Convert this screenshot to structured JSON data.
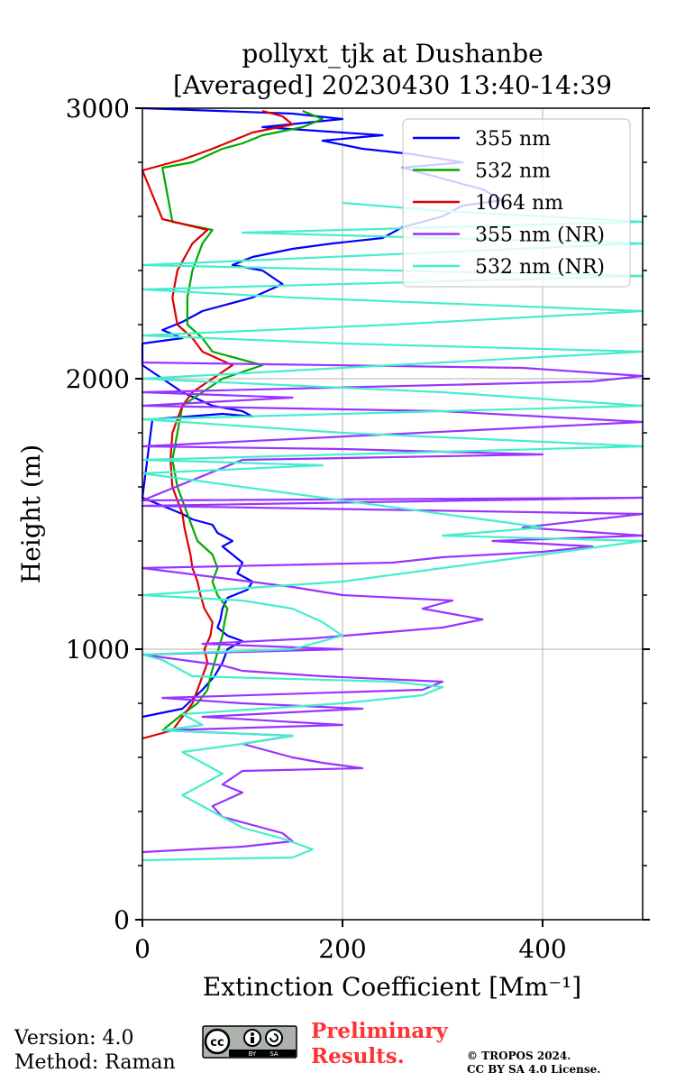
{
  "title": {
    "line1": "pollyxt_tjk at Dushanbe",
    "line2": "[Averaged] 20230430 13:40-14:39"
  },
  "footer": {
    "version": "Version: 4.0",
    "method": "Method: Raman",
    "preliminary_line1": "Preliminary",
    "preliminary_line2": "Results.",
    "copyright_line1": "© TROPOS 2024.",
    "copyright_line2": "CC BY SA 4.0 License.",
    "license_badge": [
      "cc",
      "BY",
      "SA"
    ],
    "license_icons": [
      "cc-icon",
      "by-icon",
      "sa-icon"
    ]
  },
  "chart_data": {
    "type": "line",
    "title": "pollyxt_tjk at Dushanbe [Averaged] 20230430 13:40-14:39",
    "xlabel": "Extinction Coefficient [Mm⁻¹]",
    "ylabel": "Height (m)",
    "xlim": [
      0,
      500
    ],
    "ylim": [
      0,
      3000
    ],
    "x_ticks": [
      0,
      200,
      400
    ],
    "x_tick_labels": [
      "0",
      "200",
      "400"
    ],
    "y_ticks": [
      0,
      1000,
      2000,
      3000
    ],
    "y_tick_labels": [
      "0",
      "1000",
      "2000",
      "3000"
    ],
    "grid": true,
    "legend_position": "top-right",
    "series": [
      {
        "name": "355 nm",
        "color": "#0000ff",
        "points": [
          [
            0,
            750
          ],
          [
            40,
            780
          ],
          [
            60,
            850
          ],
          [
            72,
            900
          ],
          [
            80,
            950
          ],
          [
            85,
            1000
          ],
          [
            100,
            1030
          ],
          [
            85,
            1050
          ],
          [
            75,
            1080
          ],
          [
            78,
            1110
          ],
          [
            80,
            1150
          ],
          [
            85,
            1190
          ],
          [
            105,
            1220
          ],
          [
            110,
            1250
          ],
          [
            95,
            1280
          ],
          [
            100,
            1320
          ],
          [
            90,
            1350
          ],
          [
            80,
            1380
          ],
          [
            90,
            1400
          ],
          [
            75,
            1430
          ],
          [
            70,
            1460
          ],
          [
            50,
            1480
          ],
          [
            40,
            1500
          ],
          [
            20,
            1530
          ],
          [
            0,
            1560
          ],
          [
            10,
            1850
          ],
          [
            80,
            1870
          ],
          [
            110,
            1860
          ],
          [
            100,
            1880
          ],
          [
            70,
            1900
          ],
          [
            40,
            1950
          ],
          [
            20,
            2000
          ],
          [
            0,
            2050
          ],
          [
            0,
            2130
          ],
          [
            40,
            2150
          ],
          [
            20,
            2180
          ],
          [
            40,
            2210
          ],
          [
            60,
            2250
          ],
          [
            110,
            2300
          ],
          [
            140,
            2350
          ],
          [
            120,
            2400
          ],
          [
            90,
            2420
          ],
          [
            110,
            2450
          ],
          [
            150,
            2480
          ],
          [
            190,
            2500
          ],
          [
            240,
            2520
          ],
          [
            260,
            2560
          ],
          [
            300,
            2600
          ],
          [
            320,
            2640
          ],
          [
            360,
            2660
          ],
          [
            340,
            2700
          ],
          [
            300,
            2740
          ],
          [
            260,
            2780
          ],
          [
            320,
            2800
          ],
          [
            270,
            2830
          ],
          [
            220,
            2850
          ],
          [
            180,
            2880
          ],
          [
            240,
            2900
          ],
          [
            120,
            2930
          ],
          [
            200,
            2960
          ],
          [
            150,
            2980
          ],
          [
            0,
            3000
          ]
        ]
      },
      {
        "name": "532 nm",
        "color": "#00aa00",
        "points": [
          [
            20,
            700
          ],
          [
            40,
            760
          ],
          [
            55,
            800
          ],
          [
            65,
            850
          ],
          [
            68,
            900
          ],
          [
            72,
            950
          ],
          [
            76,
            1000
          ],
          [
            80,
            1050
          ],
          [
            82,
            1100
          ],
          [
            85,
            1150
          ],
          [
            75,
            1200
          ],
          [
            70,
            1250
          ],
          [
            75,
            1300
          ],
          [
            70,
            1350
          ],
          [
            55,
            1400
          ],
          [
            50,
            1450
          ],
          [
            45,
            1500
          ],
          [
            40,
            1550
          ],
          [
            35,
            1600
          ],
          [
            30,
            1700
          ],
          [
            35,
            1800
          ],
          [
            40,
            1900
          ],
          [
            60,
            1950
          ],
          [
            80,
            2000
          ],
          [
            120,
            2050
          ],
          [
            70,
            2100
          ],
          [
            60,
            2150
          ],
          [
            45,
            2200
          ],
          [
            45,
            2300
          ],
          [
            50,
            2400
          ],
          [
            60,
            2500
          ],
          [
            70,
            2550
          ],
          [
            30,
            2580
          ],
          [
            20,
            2780
          ],
          [
            50,
            2800
          ],
          [
            80,
            2850
          ],
          [
            100,
            2870
          ],
          [
            120,
            2900
          ],
          [
            160,
            2930
          ],
          [
            180,
            2960
          ],
          [
            160,
            2990
          ]
        ]
      },
      {
        "name": "1064 nm",
        "color": "#dd0000",
        "points": [
          [
            0,
            670
          ],
          [
            30,
            700
          ],
          [
            40,
            750
          ],
          [
            50,
            800
          ],
          [
            55,
            850
          ],
          [
            60,
            900
          ],
          [
            65,
            950
          ],
          [
            62,
            1000
          ],
          [
            68,
            1050
          ],
          [
            70,
            1100
          ],
          [
            62,
            1150
          ],
          [
            58,
            1200
          ],
          [
            55,
            1250
          ],
          [
            50,
            1300
          ],
          [
            48,
            1350
          ],
          [
            45,
            1400
          ],
          [
            42,
            1450
          ],
          [
            40,
            1500
          ],
          [
            35,
            1550
          ],
          [
            30,
            1600
          ],
          [
            28,
            1700
          ],
          [
            30,
            1800
          ],
          [
            40,
            1900
          ],
          [
            50,
            1950
          ],
          [
            70,
            2000
          ],
          [
            90,
            2050
          ],
          [
            60,
            2100
          ],
          [
            50,
            2150
          ],
          [
            35,
            2200
          ],
          [
            30,
            2300
          ],
          [
            35,
            2400
          ],
          [
            50,
            2500
          ],
          [
            65,
            2550
          ],
          [
            20,
            2590
          ],
          [
            0,
            2770
          ],
          [
            40,
            2810
          ],
          [
            70,
            2850
          ],
          [
            90,
            2880
          ],
          [
            110,
            2910
          ],
          [
            150,
            2940
          ],
          [
            140,
            2970
          ],
          [
            120,
            2990
          ]
        ]
      },
      {
        "name": "355 nm (NR)",
        "color": "#9933ff",
        "points": [
          [
            0,
            250
          ],
          [
            100,
            270
          ],
          [
            150,
            290
          ],
          [
            140,
            320
          ],
          [
            120,
            340
          ],
          [
            80,
            380
          ],
          [
            70,
            420
          ],
          [
            100,
            470
          ],
          [
            80,
            500
          ],
          [
            100,
            550
          ],
          [
            220,
            560
          ],
          [
            180,
            580
          ],
          [
            150,
            600
          ],
          [
            130,
            620
          ],
          [
            100,
            650
          ],
          [
            150,
            680
          ],
          [
            20,
            700
          ],
          [
            200,
            720
          ],
          [
            60,
            750
          ],
          [
            220,
            780
          ],
          [
            100,
            800
          ],
          [
            20,
            820
          ],
          [
            280,
            850
          ],
          [
            300,
            880
          ],
          [
            180,
            900
          ],
          [
            100,
            920
          ],
          [
            80,
            940
          ],
          [
            40,
            960
          ],
          [
            0,
            980
          ],
          [
            200,
            1000
          ],
          [
            60,
            1020
          ],
          [
            170,
            1040
          ],
          [
            300,
            1080
          ],
          [
            340,
            1110
          ],
          [
            280,
            1150
          ],
          [
            310,
            1180
          ],
          [
            200,
            1200
          ],
          [
            150,
            1230
          ],
          [
            0,
            1300
          ],
          [
            250,
            1320
          ],
          [
            300,
            1340
          ],
          [
            400,
            1360
          ],
          [
            450,
            1380
          ],
          [
            350,
            1400
          ],
          [
            500,
            1420
          ],
          [
            380,
            1450
          ],
          [
            500,
            1500
          ],
          [
            0,
            1530
          ],
          [
            500,
            1560
          ],
          [
            0,
            1550
          ],
          [
            100,
            1700
          ],
          [
            400,
            1720
          ],
          [
            200,
            1740
          ],
          [
            0,
            1750
          ],
          [
            500,
            1840
          ],
          [
            300,
            1880
          ],
          [
            0,
            1900
          ],
          [
            150,
            1930
          ],
          [
            0,
            1950
          ],
          [
            450,
            1990
          ],
          [
            500,
            2010
          ],
          [
            380,
            2040
          ],
          [
            0,
            2060
          ]
        ]
      },
      {
        "name": "532 nm (NR)",
        "color": "#44eecc",
        "points": [
          [
            0,
            220
          ],
          [
            150,
            230
          ],
          [
            170,
            260
          ],
          [
            140,
            300
          ],
          [
            100,
            340
          ],
          [
            80,
            380
          ],
          [
            60,
            420
          ],
          [
            40,
            460
          ],
          [
            60,
            500
          ],
          [
            80,
            540
          ],
          [
            60,
            580
          ],
          [
            40,
            620
          ],
          [
            100,
            650
          ],
          [
            150,
            680
          ],
          [
            20,
            700
          ],
          [
            60,
            720
          ],
          [
            40,
            760
          ],
          [
            200,
            800
          ],
          [
            280,
            830
          ],
          [
            300,
            860
          ],
          [
            250,
            880
          ],
          [
            50,
            900
          ],
          [
            20,
            960
          ],
          [
            0,
            980
          ],
          [
            150,
            1000
          ],
          [
            200,
            1050
          ],
          [
            180,
            1100
          ],
          [
            150,
            1150
          ],
          [
            100,
            1180
          ],
          [
            0,
            1200
          ],
          [
            200,
            1250
          ],
          [
            300,
            1300
          ],
          [
            400,
            1350
          ],
          [
            500,
            1400
          ],
          [
            300,
            1420
          ],
          [
            400,
            1450
          ],
          [
            0,
            1650
          ],
          [
            180,
            1680
          ],
          [
            0,
            1700
          ],
          [
            500,
            1750
          ],
          [
            200,
            1800
          ],
          [
            0,
            1850
          ],
          [
            500,
            1900
          ],
          [
            300,
            1950
          ],
          [
            0,
            2000
          ],
          [
            250,
            2050
          ],
          [
            500,
            2100
          ],
          [
            200,
            2130
          ],
          [
            0,
            2160
          ],
          [
            250,
            2200
          ],
          [
            500,
            2250
          ],
          [
            150,
            2300
          ],
          [
            0,
            2330
          ],
          [
            500,
            2380
          ],
          [
            0,
            2420
          ],
          [
            500,
            2500
          ],
          [
            100,
            2540
          ],
          [
            500,
            2580
          ],
          [
            300,
            2620
          ],
          [
            200,
            2650
          ]
        ]
      }
    ]
  }
}
